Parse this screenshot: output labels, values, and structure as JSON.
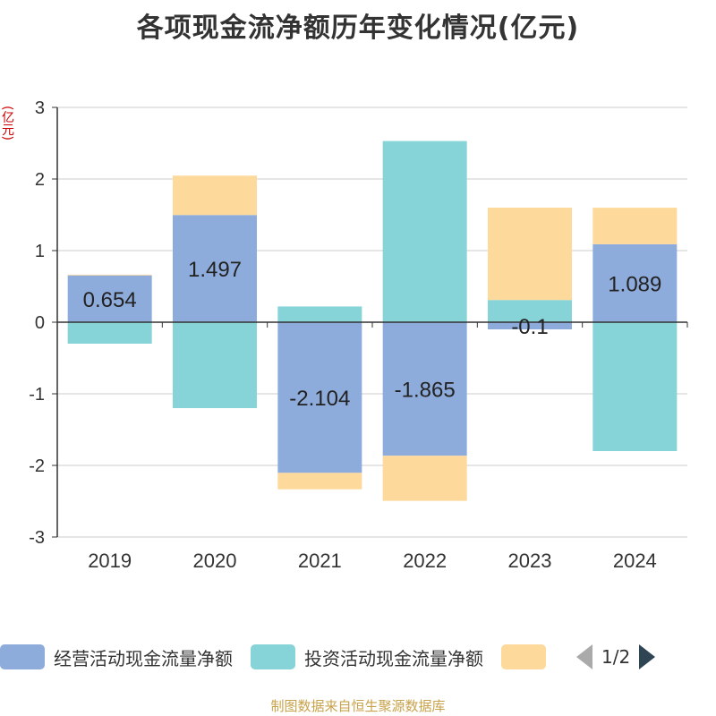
{
  "title": "各项现金流净额历年变化情况(亿元)",
  "source": "制图数据来自恒生聚源数据库",
  "legend": {
    "items": [
      {
        "label": "经营活动现金流量净额",
        "color": "#8eacdb"
      },
      {
        "label": "投资活动现金流量净额",
        "color": "#86d4d8"
      },
      {
        "label": "",
        "color": "#fdd99b"
      }
    ],
    "pager": "1/2"
  },
  "chart_data": {
    "type": "bar",
    "stacked": true,
    "categories": [
      "2019",
      "2020",
      "2021",
      "2022",
      "2023",
      "2024"
    ],
    "ylabel": "(亿元)",
    "ylim": [
      -3,
      3
    ],
    "yticks": [
      3,
      2,
      1,
      0,
      -1,
      -2,
      -3
    ],
    "grid": true,
    "legend_position": "bottom",
    "series": [
      {
        "name": "经营活动现金流量净额",
        "color": "#8eacdb",
        "values": [
          0.654,
          1.497,
          -2.104,
          -1.865,
          -0.1,
          1.089
        ],
        "labels": [
          "0.654",
          "1.497",
          "-2.104",
          "-1.865",
          "-0.1",
          "1.089"
        ]
      },
      {
        "name": "投资活动现金流量净额",
        "color": "#86d4d8",
        "values": [
          -0.3,
          -1.2,
          0.22,
          2.53,
          0.31,
          -1.8
        ]
      },
      {
        "color": "#fdd99b",
        "values": [
          0.01,
          0.55,
          -0.23,
          -0.63,
          1.29,
          0.51
        ]
      }
    ]
  }
}
